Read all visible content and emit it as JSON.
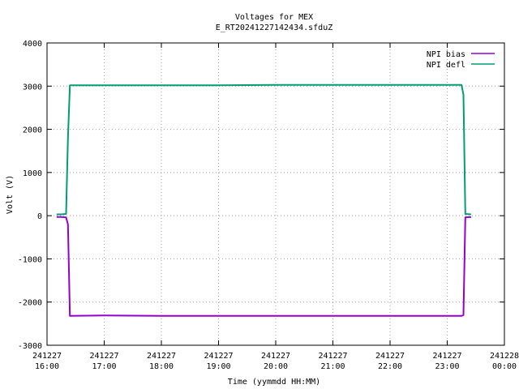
{
  "chart_data": {
    "type": "line",
    "title": "Voltages for MEX",
    "subtitle": "E_RT20241227142434.sfduZ",
    "xlabel": "Time (yymmdd HH:MM)",
    "ylabel": "Volt (V)",
    "xlim": [
      "2024-12-27 16:00",
      "2024-12-28 00:00"
    ],
    "ylim": [
      -3000,
      4000
    ],
    "yticks": [
      -3000,
      -2000,
      -1000,
      0,
      1000,
      2000,
      3000,
      4000
    ],
    "xticks": [
      {
        "date": "241227",
        "time": "16:00"
      },
      {
        "date": "241227",
        "time": "17:00"
      },
      {
        "date": "241227",
        "time": "18:00"
      },
      {
        "date": "241227",
        "time": "19:00"
      },
      {
        "date": "241227",
        "time": "20:00"
      },
      {
        "date": "241227",
        "time": "21:00"
      },
      {
        "date": "241227",
        "time": "22:00"
      },
      {
        "date": "241227",
        "time": "23:00"
      },
      {
        "date": "241228",
        "time": "00:00"
      }
    ],
    "grid": true,
    "legend_position": "top-right",
    "series": [
      {
        "name": "NPI bias",
        "color": "#9400d3",
        "x": [
          "2024-12-27 16:10",
          "2024-12-27 16:15",
          "2024-12-27 16:20",
          "2024-12-27 16:22",
          "2024-12-27 16:24",
          "2024-12-27 17:00",
          "2024-12-27 18:00",
          "2024-12-27 19:00",
          "2024-12-27 20:00",
          "2024-12-27 21:00",
          "2024-12-27 22:00",
          "2024-12-27 23:00",
          "2024-12-27 23:15",
          "2024-12-27 23:17",
          "2024-12-27 23:19",
          "2024-12-27 23:25"
        ],
        "y": [
          -30,
          -30,
          -40,
          -200,
          -2320,
          -2310,
          -2320,
          -2320,
          -2320,
          -2320,
          -2320,
          -2320,
          -2320,
          -2300,
          -40,
          -30
        ]
      },
      {
        "name": "NPI defl",
        "color": "#009e73",
        "x": [
          "2024-12-27 16:10",
          "2024-12-27 16:15",
          "2024-12-27 16:20",
          "2024-12-27 16:22",
          "2024-12-27 16:24",
          "2024-12-27 17:00",
          "2024-12-27 18:00",
          "2024-12-27 19:00",
          "2024-12-27 20:00",
          "2024-12-27 21:00",
          "2024-12-27 22:00",
          "2024-12-27 23:00",
          "2024-12-27 23:15",
          "2024-12-27 23:17",
          "2024-12-27 23:19",
          "2024-12-27 23:25"
        ],
        "y": [
          30,
          30,
          40,
          1800,
          3020,
          3020,
          3020,
          3020,
          3030,
          3030,
          3030,
          3030,
          3030,
          2800,
          40,
          30
        ]
      }
    ]
  }
}
